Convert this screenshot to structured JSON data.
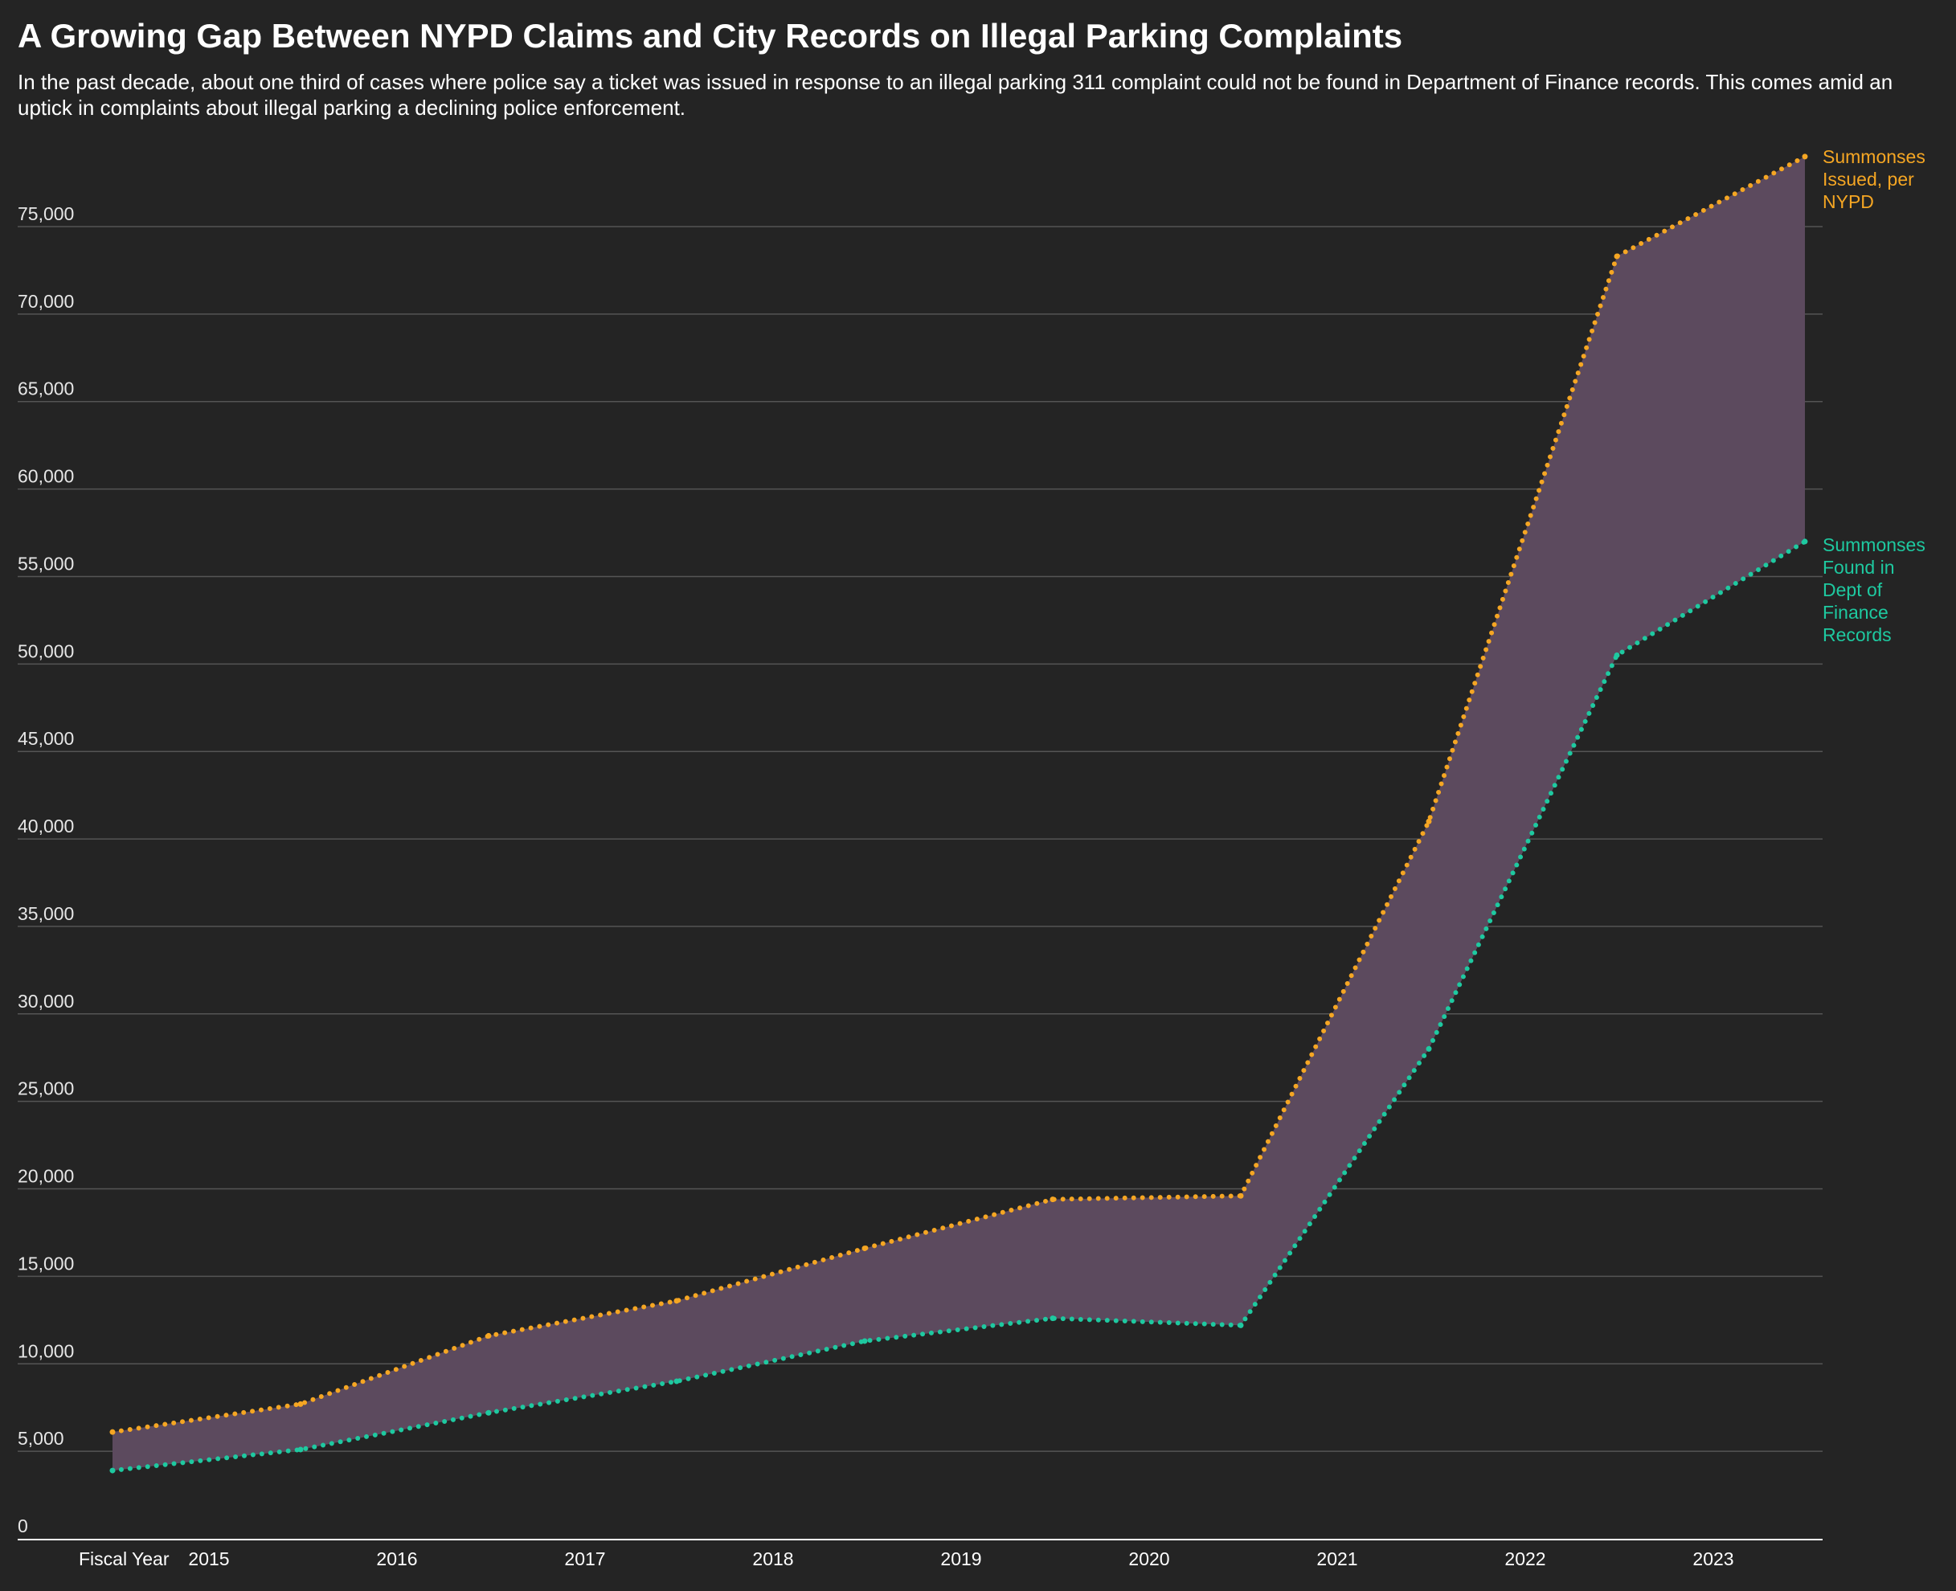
{
  "header": {
    "title": "A Growing Gap Between NYPD Claims and City Records on Illegal Parking Complaints",
    "subtitle": "In the past decade, about one third of cases where police say a ticket was issued in response to an illegal parking 311 complaint could not be found in Department of Finance records. This comes amid an uptick in complaints about illegal parking a declining police enforcement."
  },
  "colors": {
    "background": "#242424",
    "nypd": "#f5a623",
    "dof": "#1ec9a0",
    "gap_fill": "#5c4a5e",
    "grid": "#555555",
    "axis": "#ffffff"
  },
  "chart_data": {
    "type": "area",
    "title": "A Growing Gap Between NYPD Claims and City Records on Illegal Parking Complaints",
    "xlabel": "Fiscal Year",
    "ylabel": "",
    "x_tick_labels": [
      "2015",
      "2016",
      "2017",
      "2018",
      "2019",
      "2020",
      "2021",
      "2022",
      "2023"
    ],
    "y_ticks": [
      0,
      5000,
      10000,
      15000,
      20000,
      25000,
      30000,
      35000,
      40000,
      45000,
      50000,
      55000,
      60000,
      65000,
      70000,
      75000
    ],
    "y_tick_labels": [
      "0",
      "5,000",
      "10,000",
      "15,000",
      "20,000",
      "25,000",
      "30,000",
      "35,000",
      "40,000",
      "45,000",
      "50,000",
      "55,000",
      "60,000",
      "65,000",
      "70,000",
      "75,000"
    ],
    "ylim": [
      0,
      79000
    ],
    "grid": true,
    "fill_between_series": true,
    "x": [
      "FY2015 start",
      "FY2015 end",
      "FY2016 end",
      "FY2017 end",
      "FY2018 end",
      "FY2019 end",
      "FY2020 end",
      "FY2021 end",
      "FY2022 end",
      "FY2023 end"
    ],
    "series": [
      {
        "name": "Summonses Issued, per NYPD",
        "label_lines": [
          "Summonses",
          "Issued, per",
          "NYPD"
        ],
        "color": "#f5a623",
        "style": "dotted",
        "values": [
          6100,
          7700,
          11600,
          13600,
          16600,
          19400,
          19600,
          41000,
          73300,
          79000
        ]
      },
      {
        "name": "Summonses Found in Dept of Finance Records",
        "label_lines": [
          "Summonses",
          "Found in",
          "Dept of",
          "Finance",
          "Records"
        ],
        "color": "#1ec9a0",
        "style": "dotted",
        "values": [
          3900,
          5100,
          7200,
          9000,
          11300,
          12600,
          12200,
          28000,
          50500,
          57000
        ]
      }
    ]
  }
}
